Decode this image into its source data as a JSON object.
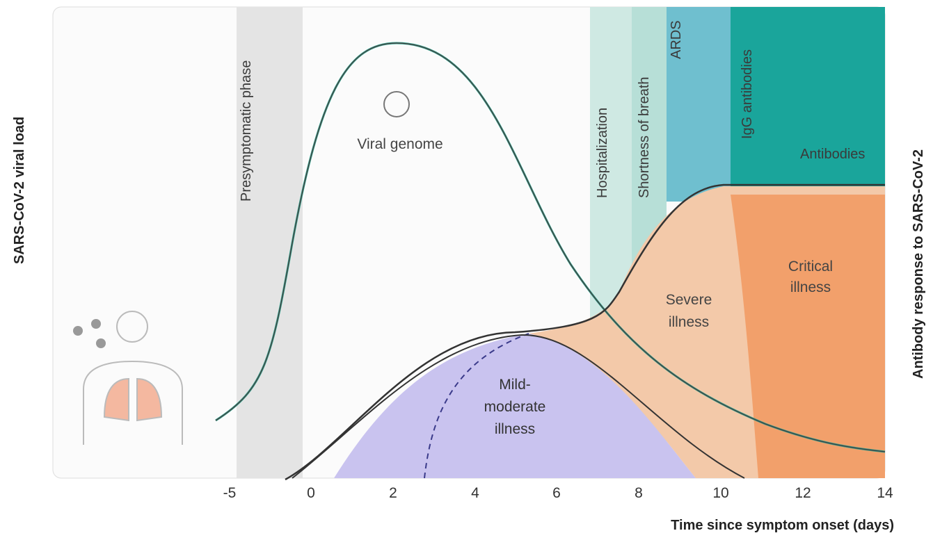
{
  "left_axis": {
    "label": "SARS-CoV-2 viral load"
  },
  "right_axis": {
    "label": "Antibody response to SARS-CoV-2"
  },
  "phases": [
    "Presymptomatic phase",
    "Hospitalization",
    "Shortness of breath",
    "ARDS",
    "IgG antibodies",
    "Antibodies"
  ],
  "curve_labels": {
    "viral": "Viral genome"
  },
  "illness": {
    "mild": [
      "Mild-",
      "moderate",
      "illness"
    ],
    "severe": [
      "Severe",
      "illness"
    ],
    "critical": [
      "Critical",
      "illness"
    ]
  },
  "x_axis": {
    "ticks": [
      -5,
      0,
      2,
      4,
      6,
      8,
      10,
      12,
      14
    ],
    "label": "Time since symptom onset (days)"
  }
}
